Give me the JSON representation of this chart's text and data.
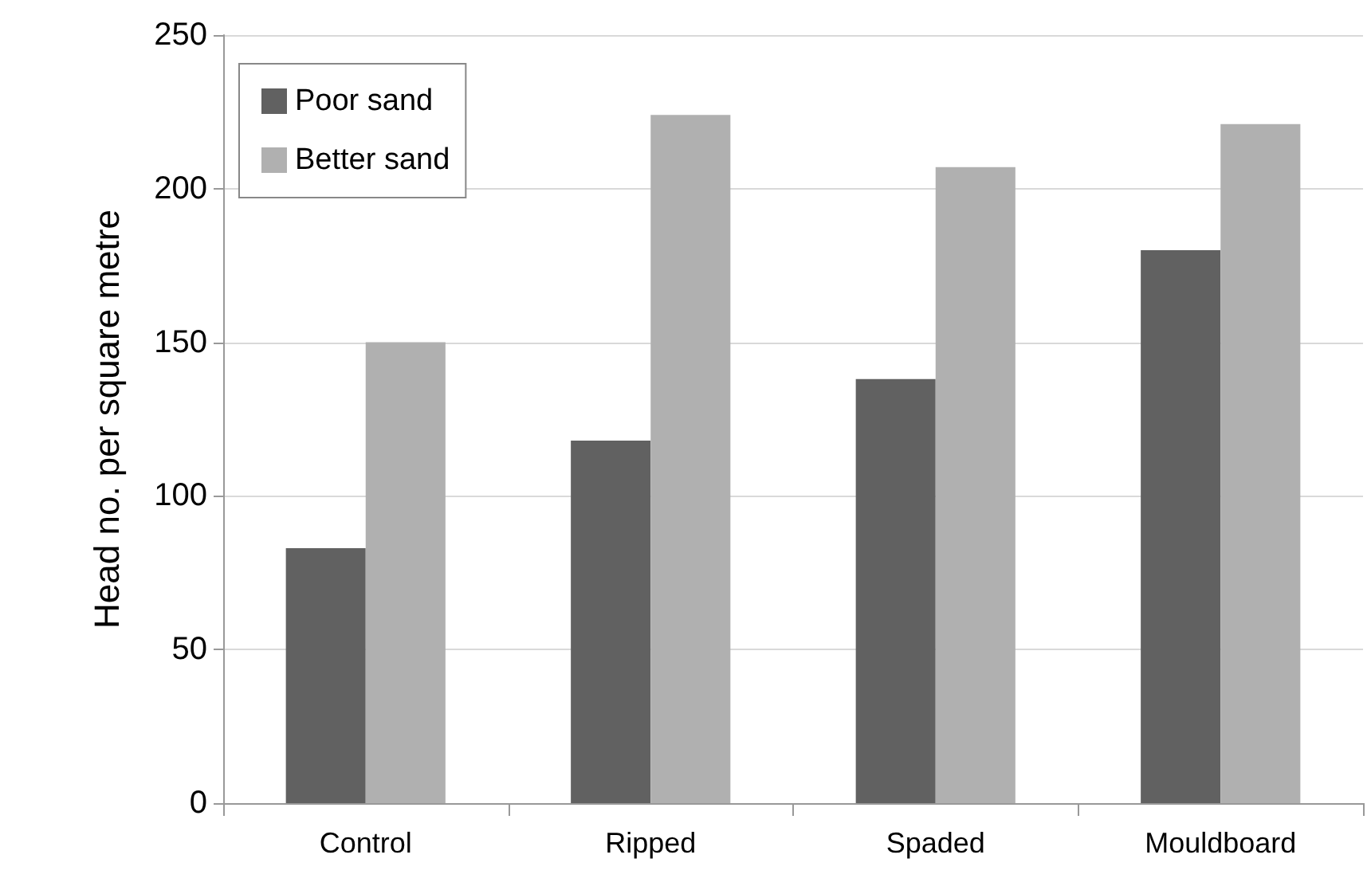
{
  "chart_data": {
    "type": "bar",
    "ylabel": "Head no. per square metre",
    "categories": [
      "Control",
      "Ripped",
      "Spaded",
      "Mouldboard"
    ],
    "series": [
      {
        "name": "Poor sand",
        "color": "#616161",
        "values": [
          83,
          118,
          138,
          180
        ]
      },
      {
        "name": "Better sand",
        "color": "#b0b0b0",
        "values": [
          150,
          224,
          207,
          221
        ]
      }
    ],
    "ylim": [
      0,
      250
    ],
    "yticks": [
      0,
      50,
      100,
      150,
      200,
      250
    ],
    "grid": "y",
    "legend": "top left"
  }
}
